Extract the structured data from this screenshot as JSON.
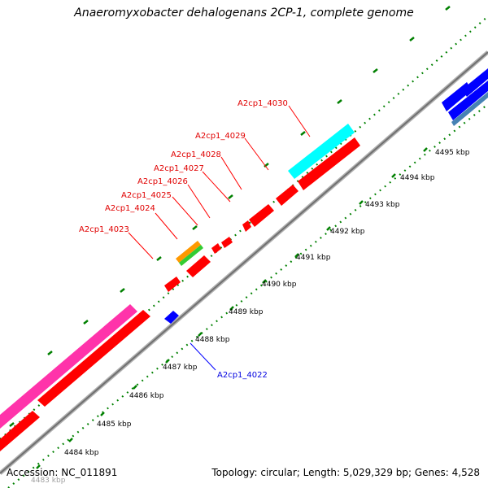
{
  "title": "Anaeromyxobacter dehalogenans 2CP-1, complete genome",
  "accession": "Accession: NC_011891",
  "summary": "Topology: circular; Length: 5,029,329 bp; Genes: 4,528",
  "colors": {
    "backbone": "#888888",
    "dots": "#008000",
    "red": "#ff0000",
    "blue": "#0000ff",
    "cyan": "#00ffff",
    "magenta": "#ff33aa",
    "orange": "#ff9900",
    "green": "#33cc33"
  },
  "scale": {
    "tick_labels": [
      "4483 kbp",
      "4484 kbp",
      "4485 kbp",
      "4486 kbp",
      "4487 kbp",
      "4488 kbp",
      "4489 kbp",
      "4490 kbp",
      "4491 kbp",
      "4492 kbp",
      "4493 kbp",
      "4494 kbp",
      "4495 kbp"
    ]
  },
  "gene_labels": {
    "a4023": "A2cp1_4023",
    "a4024": "A2cp1_4024",
    "a4025": "A2cp1_4025",
    "a4026": "A2cp1_4026",
    "a4027": "A2cp1_4027",
    "a4028": "A2cp1_4028",
    "a4029": "A2cp1_4029",
    "a4030": "A2cp1_4030",
    "a4022": "A2cp1_4022"
  }
}
